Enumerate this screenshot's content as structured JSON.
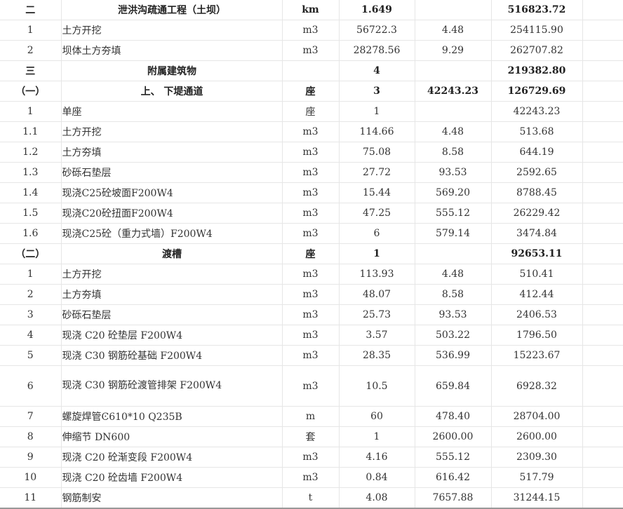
{
  "table": {
    "rows": [
      {
        "no": "二",
        "name": "泄洪沟疏通工程（土坝）",
        "unit": "km",
        "qty": "1.649",
        "price": "",
        "amount": "516823.72",
        "bold": true
      },
      {
        "no": "1",
        "name": "土方开挖",
        "unit": "m3",
        "qty": "56722.3",
        "price": "4.48",
        "amount": "254115.90"
      },
      {
        "no": "2",
        "name": "坝体土方夯填",
        "unit": "m3",
        "qty": "28278.56",
        "price": "9.29",
        "amount": "262707.82"
      },
      {
        "no": "三",
        "name": "附属建筑物",
        "unit": "",
        "qty": "4",
        "price": "",
        "amount": "219382.80",
        "bold": true
      },
      {
        "no": "（一）",
        "name": "上、 下堤通道",
        "unit": "座",
        "qty": "3",
        "price": "42243.23",
        "amount": "126729.69",
        "bold": true
      },
      {
        "no": "1",
        "name": "单座",
        "unit": "座",
        "qty": "1",
        "price": "",
        "amount": "42243.23"
      },
      {
        "no": "1.1",
        "name": "土方开挖",
        "unit": "m3",
        "qty": "114.66",
        "price": "4.48",
        "amount": "513.68"
      },
      {
        "no": "1.2",
        "name": "土方夯填",
        "unit": "m3",
        "qty": "75.08",
        "price": "8.58",
        "amount": "644.19"
      },
      {
        "no": "1.3",
        "name": "砂砾石垫层",
        "unit": "m3",
        "qty": "27.72",
        "price": "93.53",
        "amount": "2592.65"
      },
      {
        "no": "1.4",
        "name": "现浇C25砼坡面F200W4",
        "unit": "m3",
        "qty": "15.44",
        "price": "569.20",
        "amount": "8788.45"
      },
      {
        "no": "1.5",
        "name": "现浇C20砼扭面F200W4",
        "unit": "m3",
        "qty": "47.25",
        "price": "555.12",
        "amount": "26229.42"
      },
      {
        "no": "1.6",
        "name": "现浇C25砼（重力式墙）F200W4",
        "unit": "m3",
        "qty": "6",
        "price": "579.14",
        "amount": "3474.84"
      },
      {
        "no": "（二）",
        "name": "渡槽",
        "unit": "座",
        "qty": "1",
        "price": "",
        "amount": "92653.11",
        "bold": true
      },
      {
        "no": "1",
        "name": "土方开挖",
        "unit": "m3",
        "qty": "113.93",
        "price": "4.48",
        "amount": "510.41"
      },
      {
        "no": "2",
        "name": "土方夯填",
        "unit": "m3",
        "qty": "48.07",
        "price": "8.58",
        "amount": "412.44"
      },
      {
        "no": "3",
        "name": "砂砾石垫层",
        "unit": "m3",
        "qty": "25.73",
        "price": "93.53",
        "amount": "2406.53"
      },
      {
        "no": "4",
        "name": "现浇 C20 砼垫层 F200W4",
        "unit": "m3",
        "qty": "3.57",
        "price": "503.22",
        "amount": "1796.50"
      },
      {
        "no": "5",
        "name": "现浇 C30 钢筋砼基础 F200W4",
        "unit": "m3",
        "qty": "28.35",
        "price": "536.99",
        "amount": "15223.67"
      },
      {
        "no": "6",
        "name": "现浇 C30 钢筋砼渡管排架 F200W4",
        "unit": "m3",
        "qty": "10.5",
        "price": "659.84",
        "amount": "6928.32",
        "tall": true
      },
      {
        "no": "7",
        "name": "螺旋焊管Ͼ610*10 Q235B",
        "unit": "m",
        "qty": "60",
        "price": "478.40",
        "amount": "28704.00"
      },
      {
        "no": "8",
        "name": "伸缩节 DN600",
        "unit": "套",
        "qty": "1",
        "price": "2600.00",
        "amount": "2600.00"
      },
      {
        "no": "9",
        "name": "现浇 C20 砼渐变段 F200W4",
        "unit": "m3",
        "qty": "4.16",
        "price": "555.12",
        "amount": "2309.30"
      },
      {
        "no": "10",
        "name": "现浇 C20 砼齿墙 F200W4",
        "unit": "m3",
        "qty": "0.84",
        "price": "616.42",
        "amount": "517.79"
      },
      {
        "no": "11",
        "name": "钢筋制安",
        "unit": "t",
        "qty": "4.08",
        "price": "7657.88",
        "amount": "31244.15"
      }
    ]
  }
}
